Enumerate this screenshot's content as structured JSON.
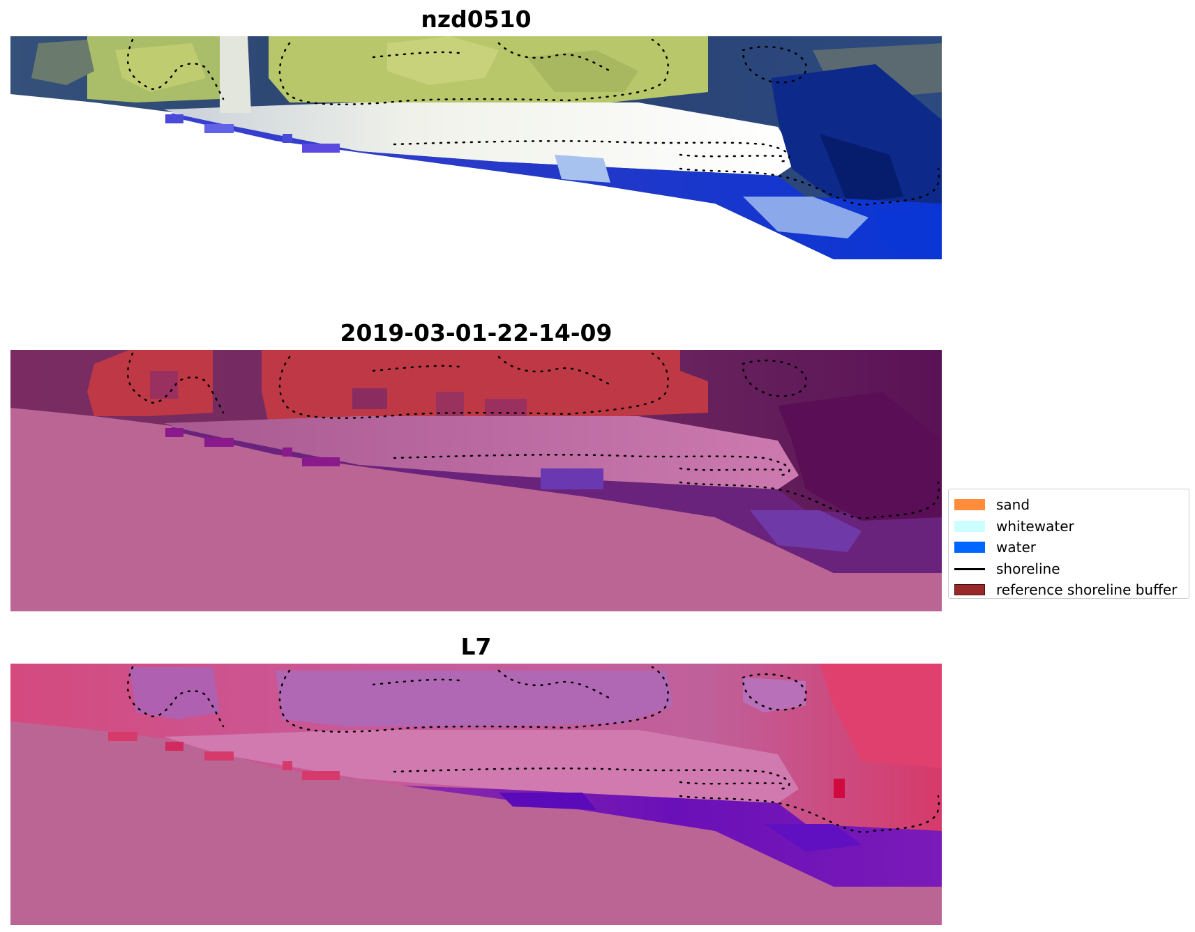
{
  "panels": [
    {
      "title": "nzd0510",
      "type": "rgb"
    },
    {
      "title": "2019-03-01-22-14-09",
      "type": "classified"
    },
    {
      "title": "L7",
      "type": "index"
    }
  ],
  "legend": {
    "items": [
      {
        "label": "sand",
        "kind": "patch",
        "color": "#ff8c3b"
      },
      {
        "label": "whitewater",
        "kind": "patch",
        "color": "#ccffff"
      },
      {
        "label": "water",
        "kind": "patch",
        "color": "#0066ff"
      },
      {
        "label": "shoreline",
        "kind": "line",
        "color": "#000000"
      },
      {
        "label": "reference shoreline buffer",
        "kind": "patch",
        "color": "#992929"
      }
    ]
  },
  "colors": {
    "nodata_mask": "#bb6595",
    "buffer_red": "#bf3846",
    "land_green": "#b7c76a",
    "beach_white": "#e8ebe0",
    "water_blue": "#1a3fe0",
    "ocean_dark": "#243b7a",
    "index_purple": "#6a18b8",
    "index_red": "#d63a6a"
  }
}
